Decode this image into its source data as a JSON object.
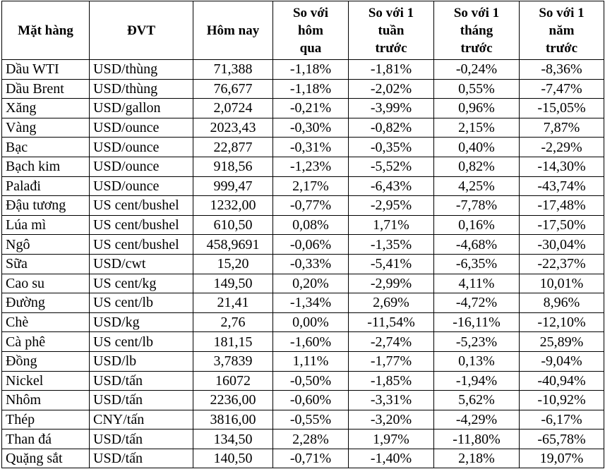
{
  "table": {
    "header": [
      [
        "Mặt hàng"
      ],
      [
        "ĐVT"
      ],
      [
        "Hôm nay"
      ],
      [
        "So với",
        "hôm",
        "qua"
      ],
      [
        "So với 1",
        "tuần",
        "trước"
      ],
      [
        "So với 1",
        "tháng",
        "trước"
      ],
      [
        "So với 1",
        "năm",
        "trước"
      ]
    ],
    "rows": [
      [
        "Dầu WTI",
        "USD/thùng",
        "71,388",
        "-1,18%",
        "-1,81%",
        "-0,24%",
        "-8,36%"
      ],
      [
        "Dầu Brent",
        "USD/thùng",
        "76,677",
        "-1,18%",
        "-2,02%",
        "0,55%",
        "-7,47%"
      ],
      [
        "Xăng",
        "USD/gallon",
        "2,0724",
        "-0,21%",
        "-3,99%",
        "0,96%",
        "-15,05%"
      ],
      [
        "Vàng",
        "USD/ounce",
        "2023,43",
        "-0,30%",
        "-0,82%",
        "2,15%",
        "7,87%"
      ],
      [
        "Bạc",
        "USD/ounce",
        "22,877",
        "-0,31%",
        "-0,35%",
        "0,40%",
        "-2,29%"
      ],
      [
        "Bạch kim",
        "USD/ounce",
        "918,56",
        "-1,23%",
        "-5,52%",
        "0,82%",
        "-14,30%"
      ],
      [
        "Palađi",
        "USD/ounce",
        "999,47",
        "2,17%",
        "-6,43%",
        "4,25%",
        "-43,74%"
      ],
      [
        "Đậu tương",
        "US cent/bushel",
        "1232,00",
        "-0,77%",
        "-2,95%",
        "-7,78%",
        "-17,48%"
      ],
      [
        "Lúa mì",
        "US cent/bushel",
        "610,50",
        "0,08%",
        "1,71%",
        "0,16%",
        "-17,50%"
      ],
      [
        "Ngô",
        "US cent/bushel",
        "458,9691",
        "-0,06%",
        "-1,35%",
        "-4,68%",
        "-30,04%"
      ],
      [
        "Sữa",
        "USD/cwt",
        "15,20",
        "-0,33%",
        "-5,41%",
        "-6,35%",
        "-22,37%"
      ],
      [
        "Cao su",
        "US cent/kg",
        "149,50",
        "0,20%",
        "-2,99%",
        "4,11%",
        "10,01%"
      ],
      [
        "Đường",
        "US cent/lb",
        "21,41",
        "-1,34%",
        "2,69%",
        "-4,72%",
        "8,96%"
      ],
      [
        "Chè",
        "USD/kg",
        "2,76",
        "0,00%",
        "-11,54%",
        "-16,11%",
        "-12,10%"
      ],
      [
        "Cà phê",
        "US cent/lb",
        "181,15",
        "-1,60%",
        "-2,74%",
        "-5,23%",
        "25,89%"
      ],
      [
        "Đồng",
        "USD/lb",
        "3,7839",
        "1,11%",
        "-1,77%",
        "0,13%",
        "-9,04%"
      ],
      [
        "Nickel",
        "USD/tấn",
        "16072",
        "-0,50%",
        "-1,85%",
        "-1,94%",
        "-40,94%"
      ],
      [
        "Nhôm",
        "USD/tấn",
        "2236,00",
        "-0,60%",
        "-3,31%",
        "5,62%",
        "-10,92%"
      ],
      [
        "Thép",
        "CNY/tấn",
        "3816,00",
        "-0,55%",
        "-3,20%",
        "-4,29%",
        "-6,17%"
      ],
      [
        "Than đá",
        "USD/tấn",
        "134,50",
        "2,28%",
        "1,97%",
        "-11,80%",
        "-65,78%"
      ],
      [
        "Quặng sắt",
        "USD/tấn",
        "140,50",
        "-0,71%",
        "-1,40%",
        "2,18%",
        "19,07%"
      ]
    ]
  }
}
